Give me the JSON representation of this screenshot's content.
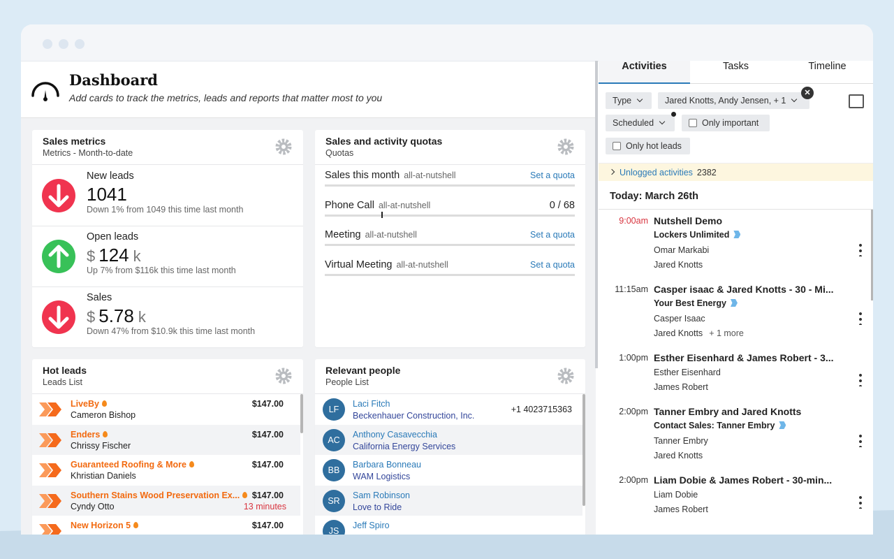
{
  "header": {
    "title": "Dashboard",
    "subtitle": "Add cards to track the metrics, leads and reports that matter most to you"
  },
  "sales_metrics": {
    "title": "Sales metrics",
    "subtitle": "Metrics - Month-to-date",
    "items": [
      {
        "label": "New leads",
        "value": "1041",
        "note": "Down 1% from 1049 this time last month",
        "direction": "down"
      },
      {
        "label": "Open leads",
        "prefix": "$",
        "value": "124",
        "suffix": "k",
        "note": "Up 7% from $116k this time last month",
        "direction": "up"
      },
      {
        "label": "Sales",
        "prefix": "$",
        "value": "5.78",
        "suffix": "k",
        "note": "Down 47% from $10.9k this time last month",
        "direction": "down"
      }
    ]
  },
  "quotas": {
    "title": "Sales and activity quotas",
    "subtitle": "Quotas",
    "items": [
      {
        "name": "Sales this month",
        "scope": "all-at-nutshell",
        "action": "Set a quota"
      },
      {
        "name": "Phone Call",
        "scope": "all-at-nutshell",
        "progress": "0 / 68"
      },
      {
        "name": "Meeting",
        "scope": "all-at-nutshell",
        "action": "Set a quota"
      },
      {
        "name": "Virtual Meeting",
        "scope": "all-at-nutshell",
        "action": "Set a quota"
      }
    ]
  },
  "hot_leads": {
    "title": "Hot leads",
    "subtitle": "Leads List",
    "rows": [
      {
        "name": "LiveBy",
        "contact": "Cameron Bishop",
        "amount": "$147.00"
      },
      {
        "name": "Enders",
        "contact": "Chrissy Fischer",
        "amount": "$147.00"
      },
      {
        "name": "Guaranteed Roofing & More",
        "contact": "Khristian Daniels",
        "amount": "$147.00"
      },
      {
        "name": "Southern Stains Wood Preservation Ex...",
        "contact": "Cyndy Otto",
        "amount": "$147.00",
        "time": "13 minutes"
      },
      {
        "name": "New Horizon 5",
        "amount": "$147.00"
      }
    ]
  },
  "people": {
    "title": "Relevant people",
    "subtitle": "People List",
    "rows": [
      {
        "initials": "LF",
        "name": "Laci Fitch",
        "company": "Beckenhauer Construction, Inc.",
        "phone": "+1 4023715363"
      },
      {
        "initials": "AC",
        "name": "Anthony Casavecchia",
        "company": "California Energy Services"
      },
      {
        "initials": "BB",
        "name": "Barbara Bonneau",
        "company": "WAM Logistics"
      },
      {
        "initials": "SR",
        "name": "Sam Robinson",
        "company": "Love to Ride"
      },
      {
        "initials": "JS",
        "name": "Jeff Spiro"
      }
    ]
  },
  "activity_panel": {
    "tabs": [
      "Activities",
      "Tasks",
      "Timeline"
    ],
    "filters": {
      "type": "Type",
      "people": "Jared Knotts, Andy Jensen, + 1",
      "status": "Scheduled",
      "only_important": "Only important",
      "only_hot_leads": "Only hot leads"
    },
    "unlogged": {
      "label": "Unlogged activities",
      "count": "2382"
    },
    "date": "Today: March 26th",
    "activities": [
      {
        "time": "9:00am",
        "title": "Nutshell Demo",
        "company": "Lockers Unlimited",
        "contacts": [
          "Omar Markabi",
          "Jared Knotts"
        ]
      },
      {
        "time": "11:15am",
        "title": "Casper isaac & Jared Knotts - 30 - Mi...",
        "company": "Your Best Energy",
        "contacts": [
          "Casper Isaac",
          "Jared Knotts"
        ],
        "more": "+ 1 more"
      },
      {
        "time": "1:00pm",
        "title": "Esther Eisenhard & James Robert - 3...",
        "contacts": [
          "Esther Eisenhard",
          "James Robert"
        ]
      },
      {
        "time": "2:00pm",
        "title": "Tanner Embry and Jared Knotts",
        "company": "Contact Sales: Tanner Embry",
        "contacts": [
          "Tanner Embry",
          "Jared Knotts"
        ]
      },
      {
        "time": "2:00pm",
        "title": "Liam Dobie & James Robert - 30-min...",
        "contacts": [
          "Liam Dobie",
          "James Robert"
        ]
      }
    ]
  }
}
